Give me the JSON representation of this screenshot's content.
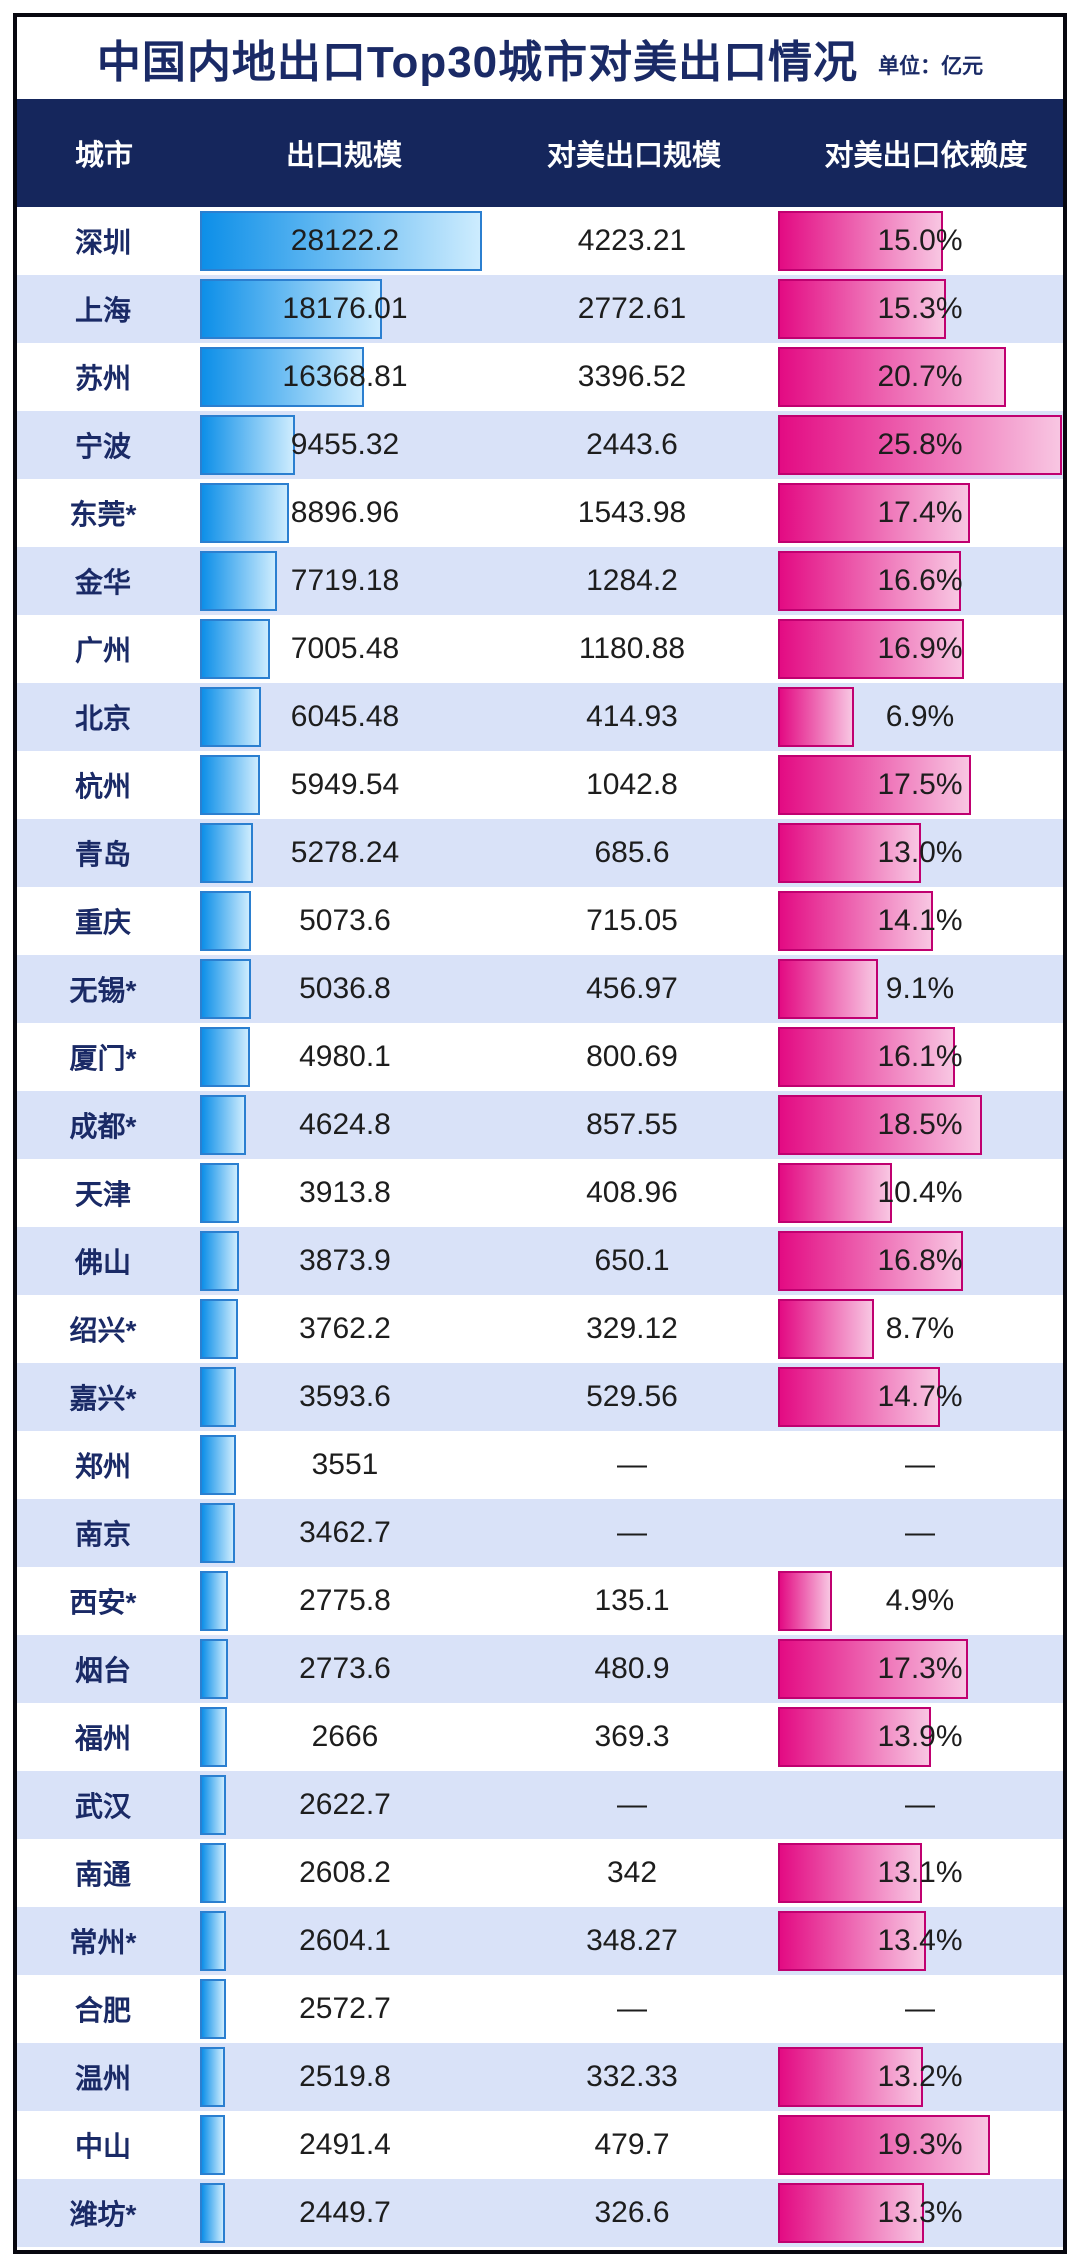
{
  "title": "中国内地出口Top30城市对美出口情况",
  "unit_label": "单位：亿元",
  "colors": {
    "frame_border": "#07070f",
    "header_bg": "#15265c",
    "alt_row_bg": "#d9e2f8",
    "title_text": "#1a2a66",
    "blue_bar_start": "#0d8fe8",
    "blue_bar_end": "#cdecfe",
    "blue_bar_border": "#2b7fd0",
    "pink_bar_start": "#e30b83",
    "pink_bar_end": "#f8c6e2",
    "pink_bar_border": "#c00070"
  },
  "chart_data": {
    "type": "bar",
    "title": "中国内地出口Top30城市对美出口情况",
    "unit": "亿元",
    "columns": [
      "城市",
      "出口规模",
      "对美出口规模",
      "对美出口依赖度"
    ],
    "legend_position": "none",
    "grid": false,
    "export_axis_max": 28122.2,
    "dependence_axis_max_pct": 25.8,
    "missing_value_label": "—",
    "rows": [
      {
        "city": "深圳",
        "export": 28122.2,
        "export_label": "28122.2",
        "us_export": 4223.21,
        "us_label": "4223.21",
        "dep": 15.0,
        "dep_label": "15.0%"
      },
      {
        "city": "上海",
        "export": 18176.01,
        "export_label": "18176.01",
        "us_export": 2772.61,
        "us_label": "2772.61",
        "dep": 15.3,
        "dep_label": "15.3%"
      },
      {
        "city": "苏州",
        "export": 16368.81,
        "export_label": "16368.81",
        "us_export": 3396.52,
        "us_label": "3396.52",
        "dep": 20.7,
        "dep_label": "20.7%"
      },
      {
        "city": "宁波",
        "export": 9455.32,
        "export_label": "9455.32",
        "us_export": 2443.6,
        "us_label": "2443.6",
        "dep": 25.8,
        "dep_label": "25.8%"
      },
      {
        "city": "东莞*",
        "export": 8896.96,
        "export_label": "8896.96",
        "us_export": 1543.98,
        "us_label": "1543.98",
        "dep": 17.4,
        "dep_label": "17.4%"
      },
      {
        "city": "金华",
        "export": 7719.18,
        "export_label": "7719.18",
        "us_export": 1284.2,
        "us_label": "1284.2",
        "dep": 16.6,
        "dep_label": "16.6%"
      },
      {
        "city": "广州",
        "export": 7005.48,
        "export_label": "7005.48",
        "us_export": 1180.88,
        "us_label": "1180.88",
        "dep": 16.9,
        "dep_label": "16.9%"
      },
      {
        "city": "北京",
        "export": 6045.48,
        "export_label": "6045.48",
        "us_export": 414.93,
        "us_label": "414.93",
        "dep": 6.9,
        "dep_label": "6.9%"
      },
      {
        "city": "杭州",
        "export": 5949.54,
        "export_label": "5949.54",
        "us_export": 1042.8,
        "us_label": "1042.8",
        "dep": 17.5,
        "dep_label": "17.5%"
      },
      {
        "city": "青岛",
        "export": 5278.24,
        "export_label": "5278.24",
        "us_export": 685.6,
        "us_label": "685.6",
        "dep": 13.0,
        "dep_label": "13.0%"
      },
      {
        "city": "重庆",
        "export": 5073.6,
        "export_label": "5073.6",
        "us_export": 715.05,
        "us_label": "715.05",
        "dep": 14.1,
        "dep_label": "14.1%"
      },
      {
        "city": "无锡*",
        "export": 5036.8,
        "export_label": "5036.8",
        "us_export": 456.97,
        "us_label": "456.97",
        "dep": 9.1,
        "dep_label": "9.1%"
      },
      {
        "city": "厦门*",
        "export": 4980.1,
        "export_label": "4980.1",
        "us_export": 800.69,
        "us_label": "800.69",
        "dep": 16.1,
        "dep_label": "16.1%"
      },
      {
        "city": "成都*",
        "export": 4624.8,
        "export_label": "4624.8",
        "us_export": 857.55,
        "us_label": "857.55",
        "dep": 18.5,
        "dep_label": "18.5%"
      },
      {
        "city": "天津",
        "export": 3913.8,
        "export_label": "3913.8",
        "us_export": 408.96,
        "us_label": "408.96",
        "dep": 10.4,
        "dep_label": "10.4%"
      },
      {
        "city": "佛山",
        "export": 3873.9,
        "export_label": "3873.9",
        "us_export": 650.1,
        "us_label": "650.1",
        "dep": 16.8,
        "dep_label": "16.8%"
      },
      {
        "city": "绍兴*",
        "export": 3762.2,
        "export_label": "3762.2",
        "us_export": 329.12,
        "us_label": "329.12",
        "dep": 8.7,
        "dep_label": "8.7%"
      },
      {
        "city": "嘉兴*",
        "export": 3593.6,
        "export_label": "3593.6",
        "us_export": 529.56,
        "us_label": "529.56",
        "dep": 14.7,
        "dep_label": "14.7%"
      },
      {
        "city": "郑州",
        "export": 3551,
        "export_label": "3551",
        "us_export": null,
        "us_label": "—",
        "dep": null,
        "dep_label": "—"
      },
      {
        "city": "南京",
        "export": 3462.7,
        "export_label": "3462.7",
        "us_export": null,
        "us_label": "—",
        "dep": null,
        "dep_label": "—"
      },
      {
        "city": "西安*",
        "export": 2775.8,
        "export_label": "2775.8",
        "us_export": 135.1,
        "us_label": "135.1",
        "dep": 4.9,
        "dep_label": "4.9%"
      },
      {
        "city": "烟台",
        "export": 2773.6,
        "export_label": "2773.6",
        "us_export": 480.9,
        "us_label": "480.9",
        "dep": 17.3,
        "dep_label": "17.3%"
      },
      {
        "city": "福州",
        "export": 2666,
        "export_label": "2666",
        "us_export": 369.3,
        "us_label": "369.3",
        "dep": 13.9,
        "dep_label": "13.9%"
      },
      {
        "city": "武汉",
        "export": 2622.7,
        "export_label": "2622.7",
        "us_export": null,
        "us_label": "—",
        "dep": null,
        "dep_label": "—"
      },
      {
        "city": "南通",
        "export": 2608.2,
        "export_label": "2608.2",
        "us_export": 342,
        "us_label": "342",
        "dep": 13.1,
        "dep_label": "13.1%"
      },
      {
        "city": "常州*",
        "export": 2604.1,
        "export_label": "2604.1",
        "us_export": 348.27,
        "us_label": "348.27",
        "dep": 13.4,
        "dep_label": "13.4%"
      },
      {
        "city": "合肥",
        "export": 2572.7,
        "export_label": "2572.7",
        "us_export": null,
        "us_label": "—",
        "dep": null,
        "dep_label": "—"
      },
      {
        "city": "温州",
        "export": 2519.8,
        "export_label": "2519.8",
        "us_export": 332.33,
        "us_label": "332.33",
        "dep": 13.2,
        "dep_label": "13.2%"
      },
      {
        "city": "中山",
        "export": 2491.4,
        "export_label": "2491.4",
        "us_export": 479.7,
        "us_label": "479.7",
        "dep": 19.3,
        "dep_label": "19.3%"
      },
      {
        "city": "潍坊*",
        "export": 2449.7,
        "export_label": "2449.7",
        "us_export": 326.6,
        "us_label": "326.6",
        "dep": 13.3,
        "dep_label": "13.3%"
      }
    ]
  }
}
